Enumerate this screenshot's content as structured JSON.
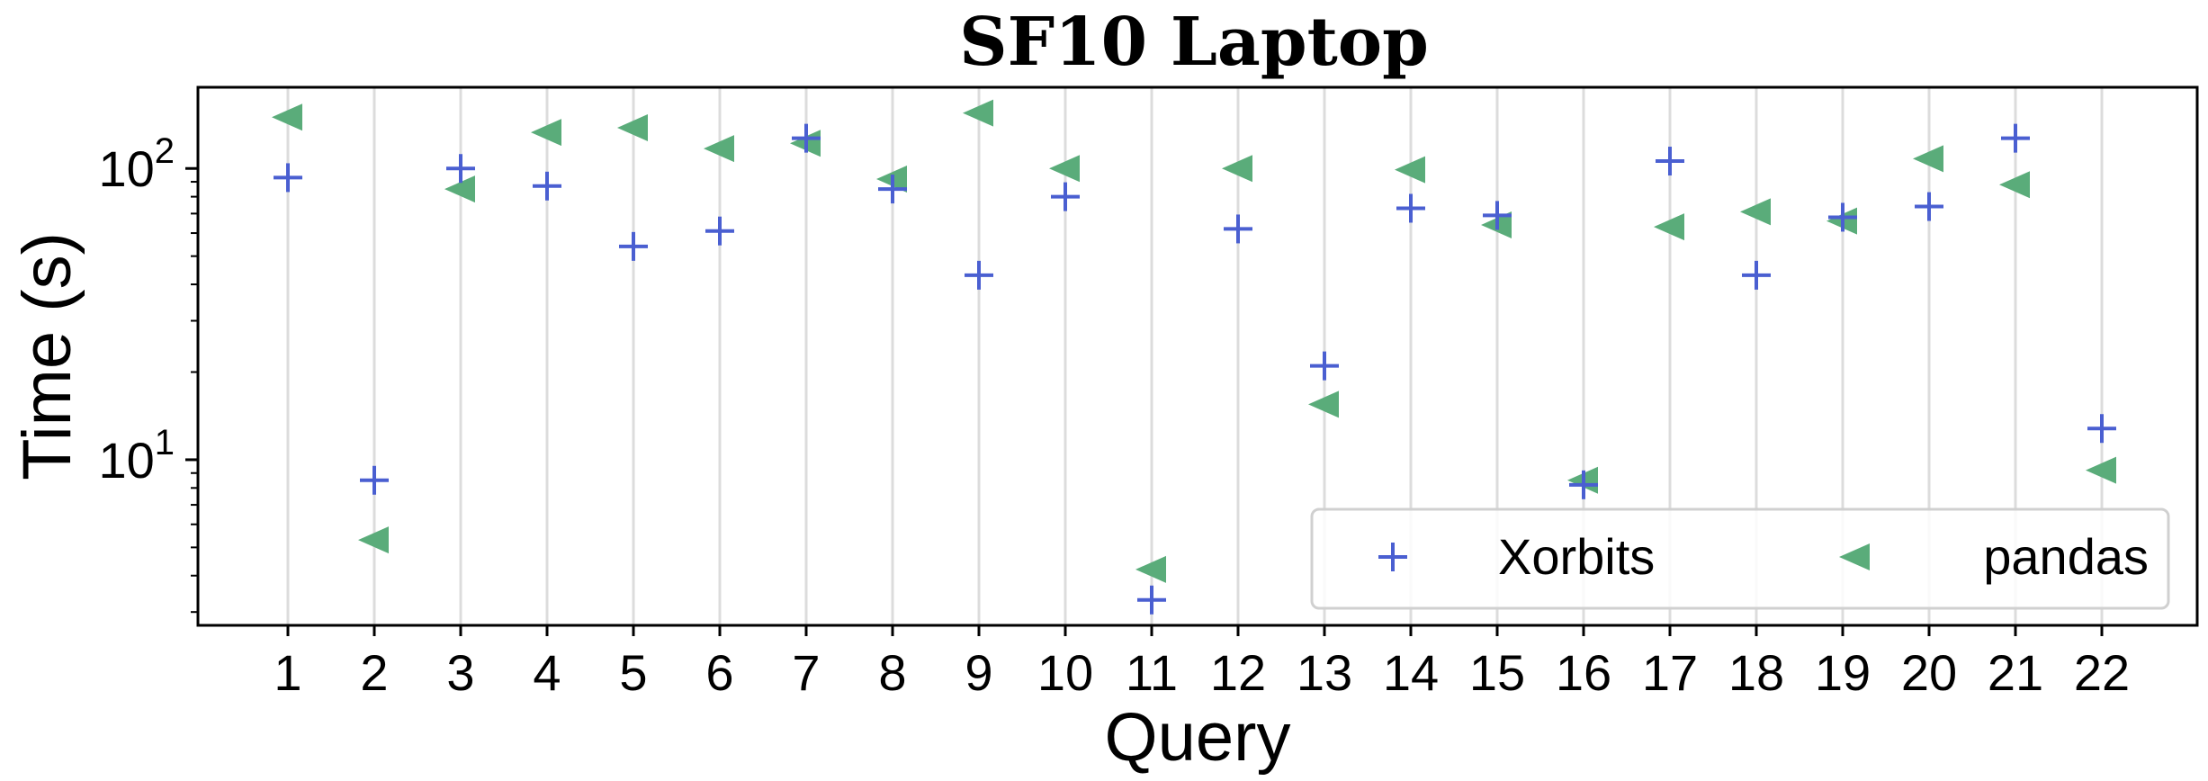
{
  "chart_data": {
    "type": "scatter",
    "title": "SF10 Laptop",
    "xlabel": "Query",
    "ylabel": "Time (s)",
    "yscale": "log",
    "ylim": [
      2.7,
      190
    ],
    "grid": "vertical",
    "legend_position": "lower-right",
    "categories": [
      "1",
      "2",
      "3",
      "4",
      "5",
      "6",
      "7",
      "8",
      "9",
      "10",
      "11",
      "12",
      "13",
      "14",
      "15",
      "16",
      "17",
      "18",
      "19",
      "20",
      "21",
      "22"
    ],
    "y_ticks": [
      {
        "base": "10",
        "exp": "1",
        "value": 10
      },
      {
        "base": "10",
        "exp": "2",
        "value": 100
      }
    ],
    "series": [
      {
        "name": "Xorbits",
        "marker": "plus",
        "color": "#4a5fd1",
        "values": [
          93,
          8.5,
          100,
          87,
          54,
          61,
          127,
          85,
          43,
          80,
          3.3,
          62,
          21,
          73,
          69,
          8.2,
          106,
          43,
          68,
          74,
          127,
          12.8
        ]
      },
      {
        "name": "pandas",
        "marker": "triangle-left",
        "color": "#5aac7a",
        "values": [
          150,
          5.3,
          85,
          133,
          138,
          117,
          122,
          92,
          155,
          100,
          4.2,
          100,
          15.5,
          99,
          64,
          8.5,
          63,
          71,
          66,
          108,
          88,
          9.2
        ]
      }
    ]
  }
}
